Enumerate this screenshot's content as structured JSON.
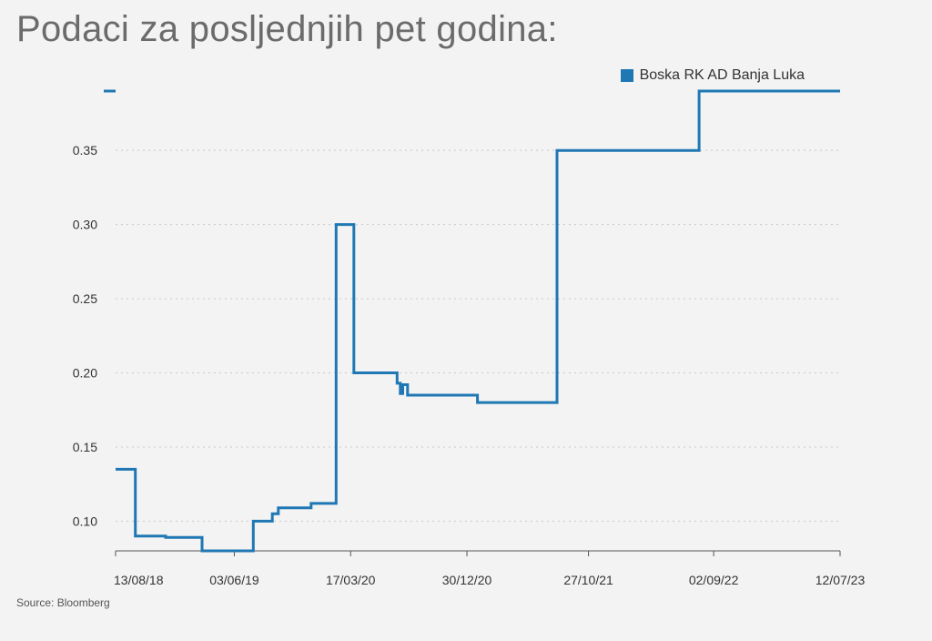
{
  "title": "Podaci za posljednjih pet godina:",
  "source": "Source: Bloomberg",
  "chart_data": {
    "type": "line",
    "step": true,
    "title": "Podaci za posljednjih pet godina:",
    "xlabel": "",
    "ylabel": "",
    "ylim": [
      0.08,
      0.39
    ],
    "yticks": [
      "0.10",
      "0.15",
      "0.20",
      "0.25",
      "0.30",
      "0.35"
    ],
    "xticks": [
      "13/08/18",
      "03/06/19",
      "17/03/20",
      "30/12/20",
      "27/10/21",
      "02/09/22",
      "12/07/23"
    ],
    "grid": true,
    "legend_position": "top-right",
    "series": [
      {
        "name": "Boska RK AD Banja Luka",
        "color": "#1f77b4",
        "points": [
          [
            "2018-08-13",
            0.135
          ],
          [
            "2018-10-01",
            0.135
          ],
          [
            "2018-10-01",
            0.09
          ],
          [
            "2018-12-15",
            0.09
          ],
          [
            "2018-12-15",
            0.089
          ],
          [
            "2019-03-15",
            0.089
          ],
          [
            "2019-03-15",
            0.08
          ],
          [
            "2019-07-20",
            0.08
          ],
          [
            "2019-07-20",
            0.1
          ],
          [
            "2019-09-05",
            0.1
          ],
          [
            "2019-09-05",
            0.105
          ],
          [
            "2019-09-20",
            0.105
          ],
          [
            "2019-09-20",
            0.109
          ],
          [
            "2019-12-10",
            0.109
          ],
          [
            "2019-12-10",
            0.112
          ],
          [
            "2020-02-10",
            0.112
          ],
          [
            "2020-02-10",
            0.3
          ],
          [
            "2020-03-25",
            0.3
          ],
          [
            "2020-03-25",
            0.2
          ],
          [
            "2020-07-10",
            0.2
          ],
          [
            "2020-07-10",
            0.193
          ],
          [
            "2020-07-18",
            0.193
          ],
          [
            "2020-07-18",
            0.186
          ],
          [
            "2020-07-24",
            0.186
          ],
          [
            "2020-07-24",
            0.192
          ],
          [
            "2020-08-05",
            0.192
          ],
          [
            "2020-08-05",
            0.185
          ],
          [
            "2021-01-25",
            0.185
          ],
          [
            "2021-01-25",
            0.18
          ],
          [
            "2021-08-10",
            0.18
          ],
          [
            "2021-08-10",
            0.35
          ],
          [
            "2022-07-28",
            0.35
          ],
          [
            "2022-07-28",
            0.39
          ],
          [
            "2023-07-12",
            0.39
          ]
        ]
      }
    ]
  }
}
